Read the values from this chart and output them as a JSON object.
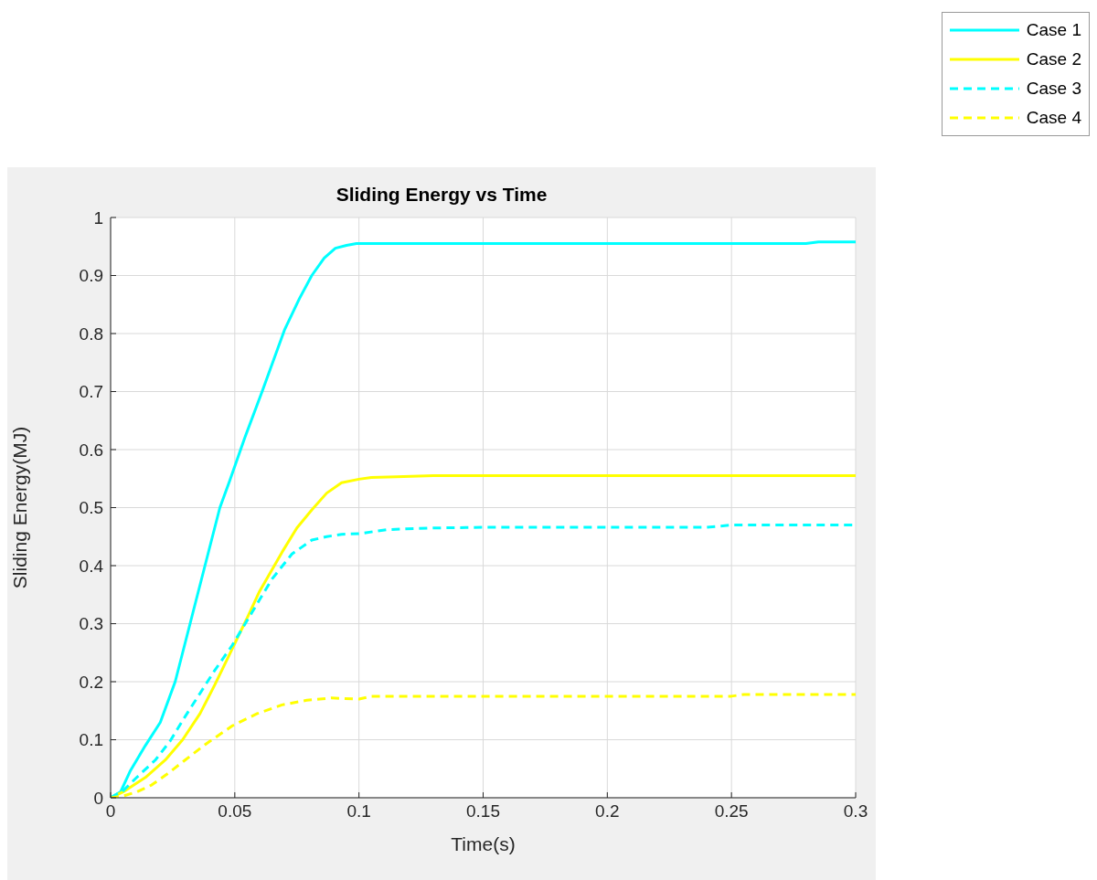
{
  "chart_data": {
    "type": "line",
    "title": "Sliding Energy vs Time",
    "xlabel": "Time(s)",
    "ylabel": "Sliding Energy(MJ)",
    "xlim": [
      0,
      0.3
    ],
    "xticks": [
      0,
      0.05,
      0.1,
      0.15,
      0.2,
      0.25,
      0.3
    ],
    "ylim": [
      0,
      1
    ],
    "yticks": [
      0,
      0.1,
      0.2,
      0.3,
      0.4,
      0.5,
      0.6,
      0.7,
      0.8,
      0.9,
      1
    ],
    "grid": true,
    "legend": "top right",
    "marker": "none",
    "series": [
      {
        "name": "Case 1",
        "color": "#00ffff",
        "line_style": "solid",
        "x": [
          0,
          0.004,
          0.008,
          0.014,
          0.02,
          0.026,
          0.032,
          0.038,
          0.044,
          0.048,
          0.054,
          0.061,
          0.07,
          0.076,
          0.081,
          0.086,
          0.0905,
          0.095,
          0.099,
          0.15,
          0.2,
          0.28,
          0.285,
          0.3
        ],
        "values": [
          0,
          0.01,
          0.047,
          0.09,
          0.13,
          0.2,
          0.3,
          0.4,
          0.5,
          0.547,
          0.62,
          0.7,
          0.806,
          0.86,
          0.9,
          0.93,
          0.947,
          0.952,
          0.955,
          0.955,
          0.955,
          0.955,
          0.958,
          0.958
        ]
      },
      {
        "name": "Case 2",
        "color": "#ffff00",
        "line_style": "solid",
        "x": [
          0,
          0.005,
          0.014,
          0.022,
          0.029,
          0.036,
          0.042,
          0.049,
          0.055,
          0.06,
          0.069,
          0.075,
          0.081,
          0.087,
          0.093,
          0.1,
          0.105,
          0.115,
          0.13,
          0.2,
          0.3
        ],
        "values": [
          0,
          0.01,
          0.035,
          0.065,
          0.1,
          0.145,
          0.195,
          0.257,
          0.31,
          0.356,
          0.423,
          0.465,
          0.496,
          0.525,
          0.543,
          0.549,
          0.552,
          0.553,
          0.555,
          0.555,
          0.555
        ]
      },
      {
        "name": "Case 3",
        "color": "#00ffff",
        "line_style": "dashed",
        "x": [
          0,
          0.005,
          0.0105,
          0.018,
          0.024,
          0.03,
          0.036,
          0.042,
          0.049,
          0.057,
          0.065,
          0.073,
          0.081,
          0.087,
          0.093,
          0.1,
          0.111,
          0.13,
          0.15,
          0.24,
          0.25,
          0.3
        ],
        "values": [
          0,
          0.012,
          0.035,
          0.065,
          0.098,
          0.14,
          0.18,
          0.22,
          0.263,
          0.32,
          0.377,
          0.42,
          0.444,
          0.45,
          0.454,
          0.455,
          0.462,
          0.465,
          0.466,
          0.466,
          0.47,
          0.47
        ]
      },
      {
        "name": "Case 4",
        "color": "#ffff00",
        "line_style": "dashed",
        "x": [
          0,
          0.005,
          0.0105,
          0.0165,
          0.0225,
          0.03,
          0.0385,
          0.049,
          0.059,
          0.069,
          0.079,
          0.089,
          0.1,
          0.105,
          0.12,
          0.2,
          0.25,
          0.255,
          0.3
        ],
        "values": [
          0,
          0.003,
          0.01,
          0.022,
          0.04,
          0.065,
          0.093,
          0.124,
          0.145,
          0.16,
          0.168,
          0.172,
          0.17,
          0.175,
          0.175,
          0.175,
          0.175,
          0.178,
          0.178
        ]
      }
    ]
  }
}
